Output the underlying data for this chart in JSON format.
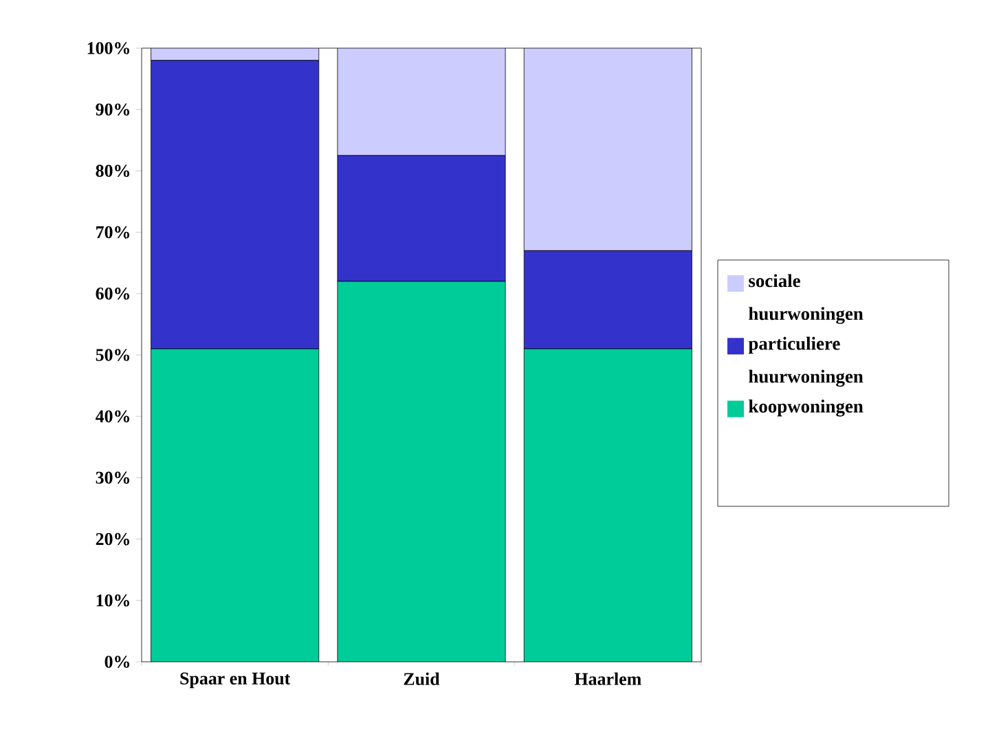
{
  "chart_data": {
    "type": "bar",
    "stacked": true,
    "categories": [
      "Spaar en Hout",
      "Zuid",
      "Haarlem"
    ],
    "series": [
      {
        "name": "koopwoningen",
        "color": "#00cc99",
        "values": [
          51,
          62,
          51
        ]
      },
      {
        "name": "particuliere huurwoningen",
        "color": "#3333cc",
        "values": [
          47,
          20.5,
          16
        ]
      },
      {
        "name": "sociale huurwoningen",
        "color": "#ccccff",
        "values": [
          2,
          17.5,
          33
        ]
      }
    ],
    "ylim": [
      0,
      100
    ],
    "yticks": [
      {
        "value": 0,
        "label": "0%"
      },
      {
        "value": 10,
        "label": "10%"
      },
      {
        "value": 20,
        "label": "20%"
      },
      {
        "value": 30,
        "label": "30%"
      },
      {
        "value": 40,
        "label": "40%"
      },
      {
        "value": 50,
        "label": "50%"
      },
      {
        "value": 60,
        "label": "60%"
      },
      {
        "value": 70,
        "label": "70%"
      },
      {
        "value": 80,
        "label": "80%"
      },
      {
        "value": 90,
        "label": "90%"
      },
      {
        "value": 100,
        "label": "100%"
      }
    ],
    "legend": "right",
    "grid": false
  }
}
